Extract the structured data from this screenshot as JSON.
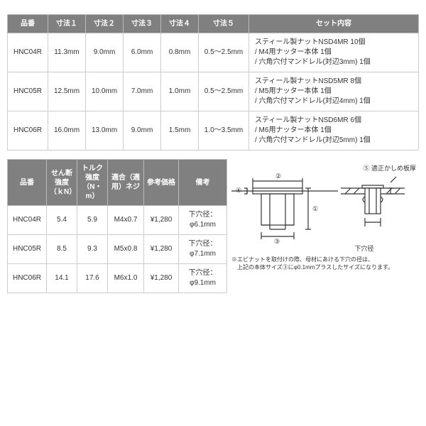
{
  "table1": {
    "headers": [
      "品番",
      "寸法１",
      "寸法２",
      "寸法３",
      "寸法４",
      "寸法５",
      "セット内容"
    ],
    "rows": [
      {
        "pn": "HNC04R",
        "d1": "11.3mm",
        "d2": "9.0mm",
        "d3": "6.0mm",
        "d4": "0.8mm",
        "d5": "0.5～2.5mm",
        "set": "スティール製ナットNSD4MR 10個\n/ M4用ナッター本体 1個\n/ 六角穴付マンドレル(対辺3mm) 1個"
      },
      {
        "pn": "HNC05R",
        "d1": "12.5mm",
        "d2": "10.0mm",
        "d3": "7.0mm",
        "d4": "1.0mm",
        "d5": "0.5～2.5mm",
        "set": "スティール製ナットNSD5MR 8個\n/ M5用ナッター本体 1個\n/ 六角穴付マンドレル(対辺4mm) 1個"
      },
      {
        "pn": "HNC06R",
        "d1": "16.0mm",
        "d2": "13.0mm",
        "d3": "9.0mm",
        "d4": "1.5mm",
        "d5": "1.0～3.5mm",
        "set": "スティール製ナットNSD6MR 6個\n/ M6用ナッター本体 1個\n/ 六角穴付マンドレル(対辺5mm) 1個"
      }
    ]
  },
  "table2": {
    "headers": [
      "品番",
      "せん断強度（ｋN）",
      "トルク強度（N・m）",
      "適合（適用）ネジ",
      "参考価格",
      "備考"
    ],
    "rows": [
      {
        "pn": "HNC04R",
        "shear": "5.4",
        "torque": "5.9",
        "screw": "M4x0.7",
        "price": "¥1,280",
        "note": "下穴径：φ6.1mm"
      },
      {
        "pn": "HNC05R",
        "shear": "8.5",
        "torque": "9.3",
        "screw": "M5x0.8",
        "price": "¥1,280",
        "note": "下穴径：φ7.1mm"
      },
      {
        "pn": "HNC06R",
        "shear": "14.1",
        "torque": "17.6",
        "screw": "M6x1.0",
        "price": "¥1,280",
        "note": "下穴径：φ9.1mm"
      }
    ]
  },
  "diagram": {
    "label_right_top": "⑤ 適正かしめ板厚",
    "label_under_right": "下穴径",
    "circ1": "①",
    "circ2": "②",
    "circ3": "③",
    "circ4": "④",
    "note_line1": "※エビナットを取付けの際、母材にあける下穴の径は、",
    "note_line2": "　上記の本体サイズ③にφ0.1mmプラスしたサイズになります。"
  },
  "colors": {
    "header_bg": "#808080",
    "header_fg": "#ffffff",
    "border": "#cccccc",
    "text": "#333333",
    "bg": "#ffffff"
  }
}
